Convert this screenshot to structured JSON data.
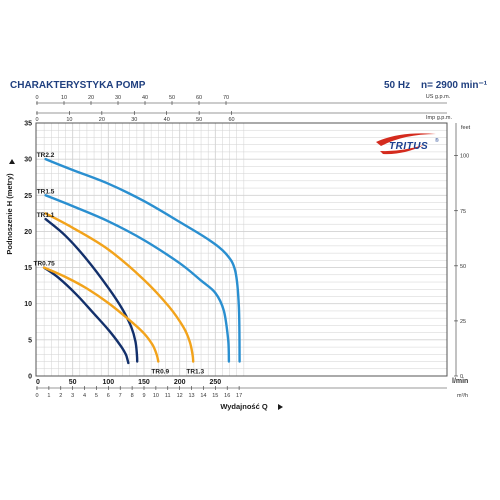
{
  "header": {
    "title": "CHARAKTERYSTYKA POMP",
    "freq": "50 Hz",
    "speed": "n= 2900 min⁻¹"
  },
  "logo": {
    "text": "TRITUS",
    "mark": "®"
  },
  "colors": {
    "header_text": "#1f3f7f",
    "navy": "#13306b",
    "light_blue": "#2a8fd0",
    "orange": "#f2a31b",
    "grid": "#d2d2d2",
    "axis": "#333333",
    "logo_red": "#d42b1e"
  },
  "chart_data": {
    "type": "line",
    "title": "",
    "xlabel": "Wydajność Q",
    "ylabel": "Podnoszenie H (metry)",
    "xlim": [
      0,
      300
    ],
    "ylim": [
      0,
      35
    ],
    "x_unit": "l/min",
    "x_ticks": [
      50,
      100,
      150,
      200,
      250
    ],
    "y_ticks": [
      0,
      5,
      10,
      15,
      20,
      25,
      30,
      35
    ],
    "secondary_axes": {
      "us_gpm": {
        "label": "US g.p.m.",
        "ticks": [
          0,
          10,
          20,
          30,
          40,
          50,
          60,
          70
        ]
      },
      "imp_gpm": {
        "label": "Imp g.p.m.",
        "ticks": [
          0,
          10,
          20,
          30,
          40,
          50,
          60
        ]
      },
      "m3h": {
        "label": "m³/h",
        "ticks": [
          0,
          1,
          2,
          3,
          4,
          5,
          6,
          7,
          8,
          9,
          10,
          11,
          12,
          13,
          14,
          15,
          16,
          17
        ]
      },
      "feet": {
        "label": "feet",
        "ticks": [
          0,
          25,
          50,
          75,
          100
        ]
      }
    },
    "grid": true,
    "series": [
      {
        "name": "TR0.75",
        "color": "navy",
        "x": [
          10,
          30,
          55,
          80,
          100,
          115,
          124,
          127,
          128
        ],
        "y": [
          15,
          13.6,
          11.3,
          8.6,
          6.4,
          4.5,
          3.1,
          2.2,
          1.8
        ]
      },
      {
        "name": "TR1.1",
        "color": "navy",
        "x": [
          12,
          40,
          70,
          100,
          120,
          132,
          138,
          140,
          140.5
        ],
        "y": [
          21.7,
          19.4,
          16.1,
          12.2,
          9.2,
          6.8,
          4.8,
          3.0,
          2.0
        ]
      },
      {
        "name": "TR0.9",
        "color": "orange",
        "x": [
          10,
          40,
          70,
          100,
          130,
          150,
          162,
          168,
          170
        ],
        "y": [
          15,
          13.7,
          12.1,
          10.1,
          7.7,
          5.9,
          4.3,
          2.9,
          2.0
        ]
      },
      {
        "name": "TR1.3",
        "color": "orange",
        "x": [
          12,
          50,
          100,
          150,
          185,
          205,
          214,
          218,
          219
        ],
        "y": [
          22.5,
          20.5,
          17.5,
          13.3,
          9.6,
          6.8,
          4.8,
          3.0,
          2.0
        ]
      },
      {
        "name": "TR1.5",
        "color": "light_blue",
        "x": [
          12,
          50,
          100,
          150,
          200,
          230,
          250,
          262,
          268,
          269
        ],
        "y": [
          25,
          23.5,
          21.4,
          18.8,
          15.6,
          13.2,
          11.5,
          9.0,
          5.0,
          2.0
        ]
      },
      {
        "name": "TR2.2",
        "color": "light_blue",
        "x": [
          12,
          50,
          100,
          150,
          200,
          240,
          265,
          278,
          283,
          284
        ],
        "y": [
          30,
          28.5,
          26.6,
          24.2,
          21.3,
          18.9,
          16.9,
          14.5,
          9.5,
          2.0
        ]
      }
    ]
  }
}
